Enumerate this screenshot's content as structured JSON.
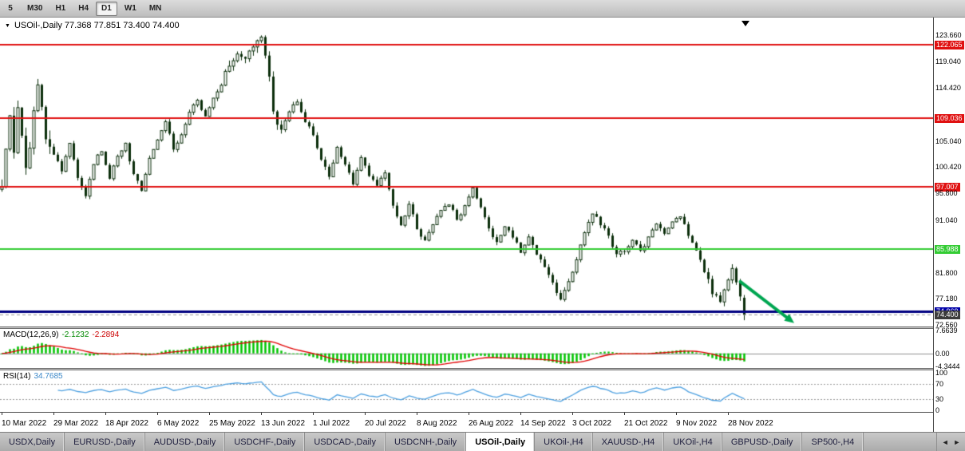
{
  "toolbar": {
    "timeframes": [
      {
        "label": "5",
        "active": false
      },
      {
        "label": "M30",
        "active": false
      },
      {
        "label": "H1",
        "active": false
      },
      {
        "label": "H4",
        "active": false
      },
      {
        "label": "D1",
        "active": true
      },
      {
        "label": "W1",
        "active": false
      },
      {
        "label": "MN",
        "active": false
      }
    ]
  },
  "chart": {
    "title": "USOil-,Daily  77.368 77.851 73.400 74.400",
    "symbol": "USOil-",
    "period": "Daily",
    "ohlc": {
      "open": "77.368",
      "high": "77.851",
      "low": "73.400",
      "close": "74.400"
    }
  },
  "price_axis": {
    "labels": [
      {
        "value": "123.660",
        "price": 123.66,
        "style": "plain"
      },
      {
        "value": "122.065",
        "price": 122.065,
        "style": "red"
      },
      {
        "value": "119.040",
        "price": 119.04,
        "style": "plain"
      },
      {
        "value": "114.420",
        "price": 114.42,
        "style": "plain"
      },
      {
        "value": "109.036",
        "price": 109.036,
        "style": "red"
      },
      {
        "value": "105.040",
        "price": 105.04,
        "style": "plain"
      },
      {
        "value": "100.420",
        "price": 100.42,
        "style": "plain"
      },
      {
        "value": "97.007",
        "price": 97.007,
        "style": "red"
      },
      {
        "value": "95.800",
        "price": 95.8,
        "style": "plain"
      },
      {
        "value": "91.040",
        "price": 91.04,
        "style": "plain"
      },
      {
        "value": "85.988",
        "price": 85.988,
        "style": "green"
      },
      {
        "value": "81.800",
        "price": 81.8,
        "style": "plain"
      },
      {
        "value": "77.180",
        "price": 77.18,
        "style": "plain"
      },
      {
        "value": "74.969",
        "price": 74.969,
        "style": "blue"
      },
      {
        "value": "74.400",
        "price": 74.4,
        "style": "dark"
      },
      {
        "value": "72.560",
        "price": 72.56,
        "style": "plain"
      }
    ]
  },
  "macd_panel": {
    "label": "MACD(12,26,9)",
    "value_main": "-2.1232",
    "value_signal": "-2.2894",
    "axis_labels": [
      {
        "value": "7.6639",
        "v": 7.6639
      },
      {
        "value": "0.00",
        "v": 0
      },
      {
        "value": "-4.3444",
        "v": -4.3444
      }
    ],
    "colors": {
      "histogram": "#00c400",
      "signal": "#e00000",
      "zero_line": "#909090"
    }
  },
  "rsi_panel": {
    "label": "RSI(14)",
    "value": "34.7685",
    "axis_labels": [
      {
        "value": "100",
        "v": 100
      },
      {
        "value": "70",
        "v": 70
      },
      {
        "value": "30",
        "v": 30
      },
      {
        "value": "0",
        "v": 0
      }
    ],
    "levels": [
      70,
      30
    ],
    "colors": {
      "line": "#4da0e0",
      "level_line": "#999999"
    }
  },
  "time_axis": {
    "labels": [
      "10 Mar 2022",
      "29 Mar 2022",
      "18 Apr 2022",
      "6 May 2022",
      "25 May 2022",
      "13 Jun 2022",
      "1 Jul 2022",
      "20 Jul 2022",
      "8 Aug 2022",
      "26 Aug 2022",
      "14 Sep 2022",
      "3 Oct 2022",
      "21 Oct 2022",
      "9 Nov 2022",
      "28 Nov 2022"
    ],
    "candles_per_label": 13
  },
  "tabs": {
    "items": [
      {
        "label": "USDX,Daily",
        "active": false
      },
      {
        "label": "EURUSD-,Daily",
        "active": false
      },
      {
        "label": "AUDUSD-,Daily",
        "active": false
      },
      {
        "label": "USDCHF-,Daily",
        "active": false
      },
      {
        "label": "USDCAD-,Daily",
        "active": false
      },
      {
        "label": "USDCNH-,Daily",
        "active": false
      },
      {
        "label": "USOil-,Daily",
        "active": true
      },
      {
        "label": "UKOil-,H4",
        "active": false
      },
      {
        "label": "XAUUSD-,H4",
        "active": false
      },
      {
        "label": "UKOil-,H4",
        "active": false
      },
      {
        "label": "GBPUSD-,Daily",
        "active": false
      },
      {
        "label": "SP500-,H4",
        "active": false
      }
    ],
    "scroll_left": "◄",
    "scroll_right": "►"
  },
  "chart_data": {
    "type": "candlestick",
    "symbol": "USOil-",
    "timeframe": "Daily",
    "ylim": [
      72.3,
      126.8
    ],
    "candle_count": 187,
    "candle_colors": {
      "bull_fill": "#ffffff",
      "bear_fill": "#0b2e0b",
      "outline": "#0b2e0b"
    },
    "h_lines": [
      {
        "price": 122.065,
        "color": "#e01010",
        "width": 2,
        "dash": false
      },
      {
        "price": 109.036,
        "color": "#e01010",
        "width": 2,
        "dash": false
      },
      {
        "price": 97.007,
        "color": "#e01010",
        "width": 2,
        "dash": false
      },
      {
        "price": 85.988,
        "color": "#33cc33",
        "width": 2,
        "dash": false
      },
      {
        "price": 74.969,
        "color": "#000080",
        "width": 3,
        "dash": false
      },
      {
        "price": 74.4,
        "color": "#9a9a9a",
        "width": 1,
        "dash": true
      }
    ],
    "close_keyframes": [
      [
        0,
        96.5
      ],
      [
        1,
        103
      ],
      [
        2,
        108.5
      ],
      [
        3,
        104
      ],
      [
        4,
        110
      ],
      [
        5,
        107
      ],
      [
        6,
        99.5
      ],
      [
        7,
        104
      ],
      [
        8,
        110
      ],
      [
        9,
        114
      ],
      [
        10,
        110
      ],
      [
        11,
        106
      ],
      [
        13,
        103.5
      ],
      [
        15,
        100
      ],
      [
        17,
        104.5
      ],
      [
        19,
        98.5
      ],
      [
        21,
        95.5
      ],
      [
        23,
        101
      ],
      [
        25,
        103.5
      ],
      [
        27,
        98
      ],
      [
        29,
        102.5
      ],
      [
        31,
        104.5
      ],
      [
        33,
        99
      ],
      [
        35,
        96.5
      ],
      [
        37,
        102
      ],
      [
        39,
        105.5
      ],
      [
        41,
        108.5
      ],
      [
        43,
        103.5
      ],
      [
        45,
        106.5
      ],
      [
        47,
        110
      ],
      [
        49,
        112.5
      ],
      [
        51,
        109
      ],
      [
        53,
        112.5
      ],
      [
        55,
        115.5
      ],
      [
        57,
        118.5
      ],
      [
        59,
        121
      ],
      [
        61,
        119
      ],
      [
        63,
        122
      ],
      [
        65,
        123
      ],
      [
        66,
        120.5
      ],
      [
        67,
        116
      ],
      [
        68,
        110.5
      ],
      [
        70,
        106.5
      ],
      [
        72,
        110.5
      ],
      [
        74,
        112
      ],
      [
        76,
        108.5
      ],
      [
        78,
        106
      ],
      [
        80,
        102
      ],
      [
        82,
        99
      ],
      [
        84,
        104
      ],
      [
        86,
        101
      ],
      [
        88,
        97.5
      ],
      [
        90,
        102
      ],
      [
        92,
        99
      ],
      [
        94,
        97
      ],
      [
        96,
        99.5
      ],
      [
        98,
        93.5
      ],
      [
        100,
        90
      ],
      [
        102,
        94
      ],
      [
        104,
        89.5
      ],
      [
        106,
        87.5
      ],
      [
        108,
        90.5
      ],
      [
        110,
        92.5
      ],
      [
        112,
        94
      ],
      [
        114,
        91
      ],
      [
        116,
        93.5
      ],
      [
        118,
        96.5
      ],
      [
        120,
        93
      ],
      [
        122,
        89.5
      ],
      [
        124,
        87
      ],
      [
        126,
        90
      ],
      [
        128,
        88
      ],
      [
        130,
        85.5
      ],
      [
        132,
        88
      ],
      [
        134,
        85
      ],
      [
        136,
        83
      ],
      [
        138,
        80
      ],
      [
        140,
        76.8
      ],
      [
        142,
        80
      ],
      [
        144,
        84
      ],
      [
        146,
        89
      ],
      [
        148,
        92.5
      ],
      [
        150,
        90.5
      ],
      [
        152,
        88
      ],
      [
        154,
        85
      ],
      [
        156,
        85.5
      ],
      [
        158,
        87.5
      ],
      [
        160,
        85.5
      ],
      [
        162,
        88
      ],
      [
        164,
        90.5
      ],
      [
        166,
        88.5
      ],
      [
        168,
        90.5
      ],
      [
        170,
        92
      ],
      [
        172,
        88.5
      ],
      [
        174,
        85.5
      ],
      [
        176,
        82
      ],
      [
        178,
        78.5
      ],
      [
        180,
        77
      ],
      [
        181,
        79
      ],
      [
        182,
        81
      ],
      [
        183,
        83
      ],
      [
        184,
        80
      ],
      [
        185,
        77.4
      ],
      [
        186,
        74.4
      ]
    ],
    "last_candle": {
      "open": 77.368,
      "high": 77.851,
      "low": 73.4,
      "close": 74.4
    },
    "max_high": 123.66,
    "min_low": 72.9,
    "peak_index": 65,
    "indicators": [
      {
        "name": "MACD",
        "params": [
          12,
          26,
          9
        ],
        "last_main": -2.1232,
        "last_signal": -2.2894
      },
      {
        "name": "RSI",
        "params": [
          14
        ],
        "last_value": 34.7685
      }
    ],
    "annotations": [
      {
        "type": "arrow",
        "color": "#00a651",
        "width": 4,
        "from_index": 185,
        "from_price": 80.2,
        "to_index": 198.5,
        "to_price": 72.9
      }
    ]
  }
}
